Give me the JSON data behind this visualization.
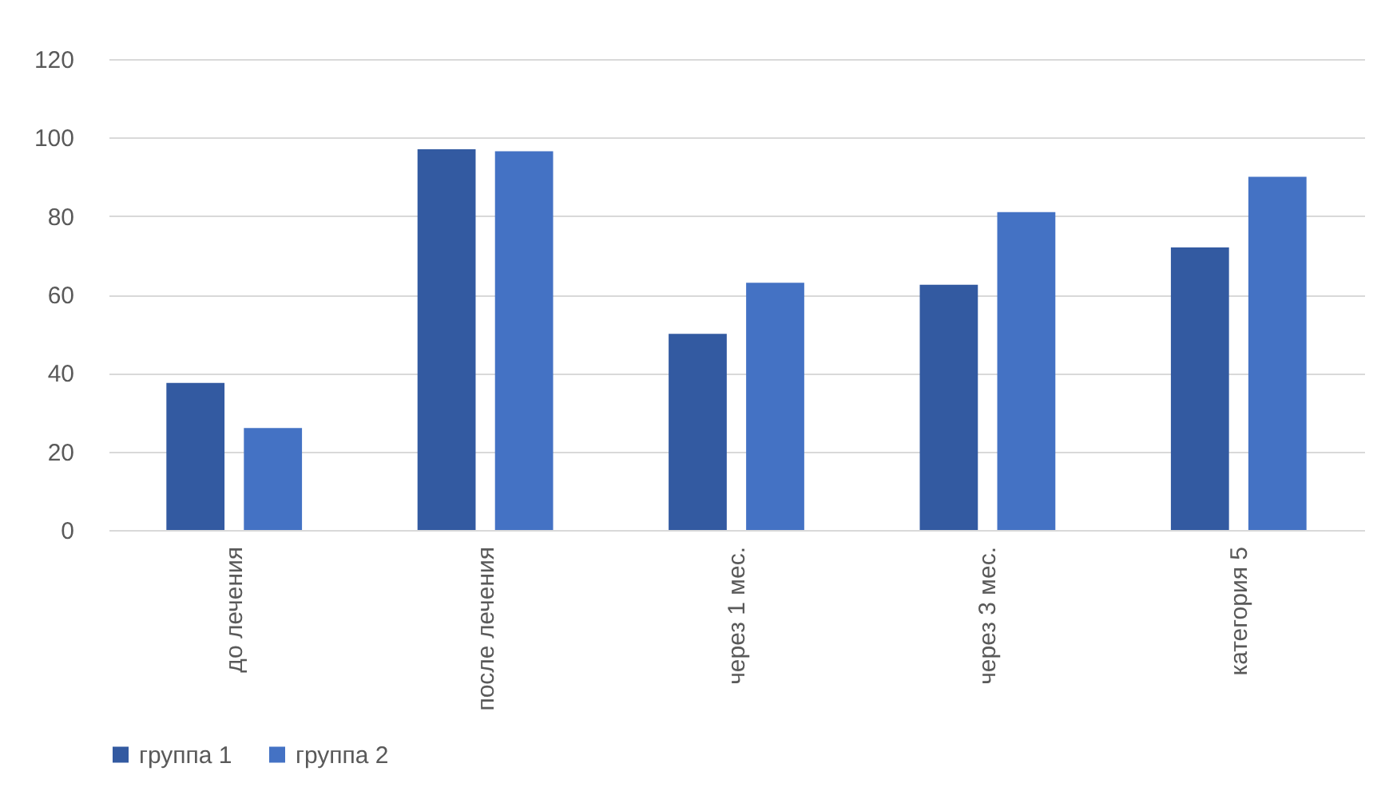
{
  "chart_data": {
    "type": "bar",
    "categories": [
      "до лечения",
      "после лечения",
      "через 1 мес.",
      "через 3 мес.",
      "категория 5"
    ],
    "series": [
      {
        "name": "группа 1",
        "color": "#335aa1",
        "values": [
          37.5,
          97,
          50,
          62.5,
          72
        ]
      },
      {
        "name": "группа 2",
        "color": "#4472c4",
        "values": [
          26,
          96.5,
          63,
          81,
          90
        ]
      }
    ],
    "ylim": [
      0,
      120
    ],
    "yticks": [
      0,
      20,
      40,
      60,
      80,
      100,
      120
    ],
    "grid": "y",
    "legend": "bottom"
  }
}
